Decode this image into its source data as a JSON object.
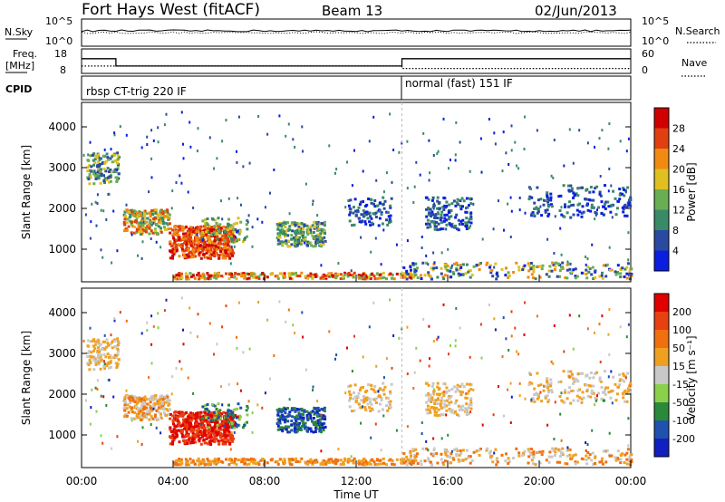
{
  "header": {
    "station": "Fort Hays West (fitACF)",
    "beam": "Beam 13",
    "date": "02/Jun/2013"
  },
  "left_labels": {
    "nsky": "N.Sky",
    "freq": "Freq.",
    "freq_unit": "[MHz]",
    "cpid": "CPID"
  },
  "right_labels": {
    "nsearch": "N.Search",
    "nave": "Nave"
  },
  "cpid_segments": [
    {
      "label": "rbsp CT-trig 220 IF",
      "start_hour": 0
    },
    {
      "label": "normal (fast) 151 IF",
      "start_hour": 14
    }
  ],
  "colors": {
    "power_scale": [
      "#0a1ee0",
      "#2a4aa0",
      "#3a8a68",
      "#6aae54",
      "#e0c020",
      "#f08a10",
      "#e04010",
      "#d00000"
    ],
    "velocity_scale": [
      "#1020c0",
      "#2050b0",
      "#2a8a3a",
      "#8ad04a",
      "#c8c8c8",
      "#f0a020",
      "#f07010",
      "#e84010",
      "#e00000"
    ]
  },
  "chart_data": [
    {
      "type": "line",
      "panel": "noise",
      "ylabel_left": "N.Sky",
      "yticks_left": [
        "10^5",
        "10^0"
      ],
      "ylabel_right": "N.Search",
      "yticks_right": [
        "10^5",
        "10^0"
      ],
      "xlim_hours": [
        0,
        24
      ]
    },
    {
      "type": "line",
      "panel": "frequency",
      "ylabel_left": "Freq. [MHz]",
      "yticks_left": [
        18,
        8
      ],
      "ylabel_right": "Nave",
      "yticks_right": [
        60,
        0
      ],
      "series": [
        {
          "points": [
            [
              0,
              14
            ],
            [
              1.5,
              14
            ],
            [
              1.5,
              11
            ],
            [
              14,
              11
            ],
            [
              14,
              14
            ],
            [
              24,
              14
            ]
          ]
        },
        {
          "points": [
            [
              0,
              11
            ],
            [
              14,
              11
            ],
            [
              14,
              10
            ],
            [
              24,
              10
            ]
          ]
        }
      ]
    },
    {
      "type": "heatmap",
      "panel": "power",
      "ylabel": "Slant Range [km]",
      "yticks": [
        1000,
        2000,
        3000,
        4000
      ],
      "ylim": [
        200,
        4600
      ],
      "xlim_hours": [
        0,
        24
      ],
      "colorbar_label": "Power [dB]",
      "colorbar_ticks": [
        4,
        8,
        12,
        16,
        20,
        24,
        28
      ]
    },
    {
      "type": "heatmap",
      "panel": "velocity",
      "ylabel": "Slant Range [km]",
      "yticks": [
        1000,
        2000,
        3000,
        4000
      ],
      "ylim": [
        200,
        4600
      ],
      "xlim_hours": [
        0,
        24
      ],
      "colorbar_label": "Velocity [m s⁻¹]",
      "colorbar_ticks": [
        200,
        100,
        50,
        15,
        -15,
        -50,
        -100,
        -200
      ],
      "xticks": [
        "00:00",
        "04:00",
        "08:00",
        "12:00",
        "16:00",
        "20:00",
        "00:00"
      ],
      "xlabel": "Time UT"
    }
  ]
}
